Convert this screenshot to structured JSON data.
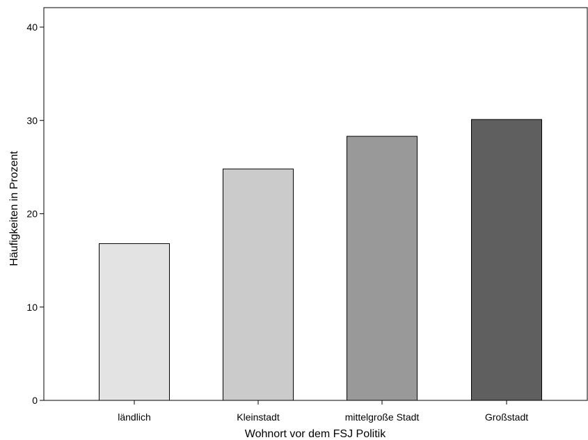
{
  "chart_data": {
    "type": "bar",
    "categories": [
      "ländlich",
      "Kleinstadt",
      "mittelgroße Stadt",
      "Großstadt"
    ],
    "values": [
      16.8,
      24.8,
      28.3,
      30.1
    ],
    "bar_colors": [
      "#e3e3e3",
      "#cbcbcb",
      "#999999",
      "#5f5f5f"
    ],
    "xlabel": "Wohnort vor dem FSJ Politik",
    "ylabel": "Häufigkeiten in Prozent",
    "ylim": [
      0,
      42
    ],
    "yticks": [
      0,
      10,
      20,
      30,
      40
    ],
    "ytick_labels": [
      "0",
      "10",
      "20",
      "30",
      "40"
    ],
    "grid": false,
    "legend": "none"
  }
}
